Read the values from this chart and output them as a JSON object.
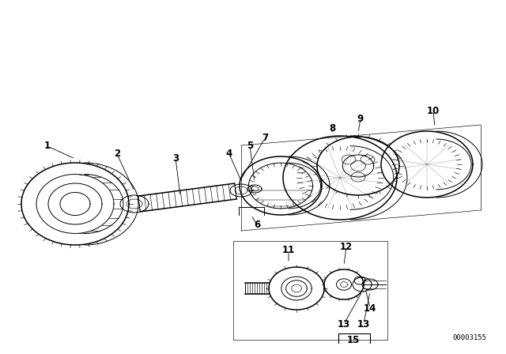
{
  "bg_color": "#ffffff",
  "fig_width": 6.4,
  "fig_height": 4.48,
  "dpi": 100,
  "watermark": "00003155"
}
